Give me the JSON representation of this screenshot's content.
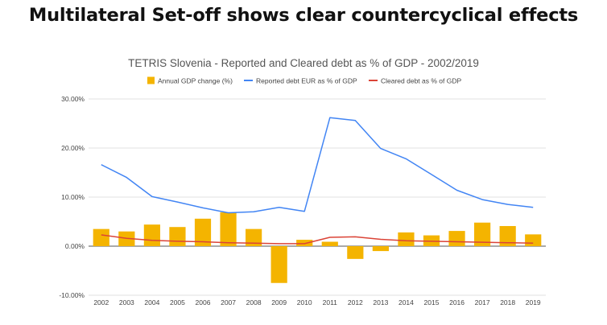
{
  "page": {
    "title": "Multilateral Set-off shows clear countercyclical effects"
  },
  "chart_data": {
    "type": "bar",
    "title": "TETRIS Slovenia - Reported and Cleared debt as % of GDP - 2002/2019",
    "categories": [
      "2002",
      "2003",
      "2004",
      "2005",
      "2006",
      "2007",
      "2008",
      "2009",
      "2010",
      "2011",
      "2012",
      "2013",
      "2014",
      "2015",
      "2016",
      "2017",
      "2018",
      "2019"
    ],
    "y_ticks": [
      "30.00%",
      "20.00%",
      "10.00%",
      "0.00%",
      "-10.00%"
    ],
    "ylim": [
      -10,
      30
    ],
    "grid": true,
    "legend_position": "top",
    "series": [
      {
        "name": "Annual GDP change (%)",
        "type": "bar",
        "color": "#f4b400",
        "values": [
          3.5,
          3.0,
          4.4,
          3.9,
          5.6,
          6.9,
          3.5,
          -7.5,
          1.3,
          0.9,
          -2.6,
          -1.0,
          2.8,
          2.2,
          3.1,
          4.8,
          4.1,
          2.4
        ]
      },
      {
        "name": "Reported debt EUR as % of GDP",
        "type": "line",
        "color": "#4285f4",
        "values": [
          16.6,
          14.0,
          10.1,
          9.0,
          7.8,
          6.8,
          7.0,
          7.9,
          7.1,
          26.2,
          25.6,
          19.9,
          17.8,
          14.6,
          11.4,
          9.5,
          8.5,
          7.9
        ]
      },
      {
        "name": "Cleared debt as % of GDP",
        "type": "line",
        "color": "#db4437",
        "values": [
          2.3,
          1.6,
          1.2,
          1.0,
          0.9,
          0.7,
          0.6,
          0.5,
          0.5,
          1.8,
          1.9,
          1.4,
          1.1,
          1.0,
          0.9,
          0.8,
          0.7,
          0.6
        ]
      }
    ]
  }
}
